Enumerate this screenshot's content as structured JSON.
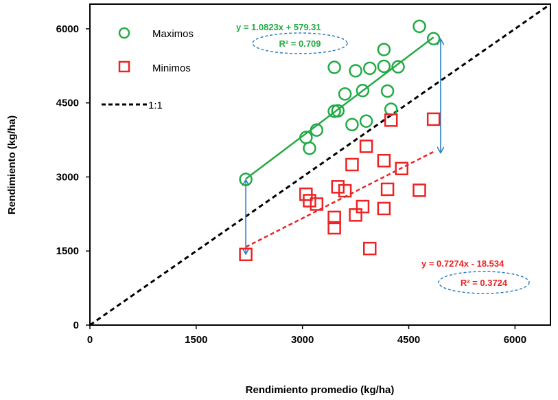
{
  "chart_data": {
    "type": "scatter",
    "xlabel": "Rendimiento promedio (kg/ha)",
    "ylabel": "Rendimiento (kg/ha)",
    "xlim": [
      0,
      6500
    ],
    "ylim": [
      0,
      6500
    ],
    "xticks": [
      "0",
      "1500",
      "3000",
      "4500",
      "6000"
    ],
    "yticks": [
      "0",
      "1500",
      "3000",
      "4500",
      "6000"
    ],
    "grid": false,
    "legend_position": "top-left",
    "series": [
      {
        "name": "Maximos",
        "marker": "circle",
        "color": "#22aa44",
        "points": [
          [
            2200,
            2950
          ],
          [
            3050,
            3800
          ],
          [
            3100,
            3580
          ],
          [
            3200,
            3950
          ],
          [
            3450,
            5220
          ],
          [
            3450,
            4330
          ],
          [
            3500,
            4340
          ],
          [
            3600,
            4680
          ],
          [
            3700,
            4060
          ],
          [
            3750,
            5150
          ],
          [
            3850,
            4750
          ],
          [
            3900,
            4130
          ],
          [
            3950,
            5200
          ],
          [
            4150,
            5580
          ],
          [
            4150,
            5240
          ],
          [
            4200,
            4740
          ],
          [
            4250,
            4370
          ],
          [
            4350,
            5230
          ],
          [
            4650,
            6050
          ],
          [
            4850,
            5800
          ]
        ],
        "trendline": {
          "slope": 1.0823,
          "intercept": 579.31,
          "x_range": [
            2200,
            4850
          ],
          "equation": "y = 1.0823x + 579.31",
          "r2": "R² = 0.709",
          "style": "solid"
        }
      },
      {
        "name": "Minimos",
        "marker": "square",
        "color": "#ee2222",
        "points": [
          [
            2200,
            1430
          ],
          [
            3050,
            2650
          ],
          [
            3100,
            2520
          ],
          [
            3200,
            2450
          ],
          [
            3450,
            2180
          ],
          [
            3450,
            1970
          ],
          [
            3500,
            2800
          ],
          [
            3600,
            2720
          ],
          [
            3700,
            3250
          ],
          [
            3750,
            2230
          ],
          [
            3850,
            2400
          ],
          [
            3900,
            3620
          ],
          [
            3950,
            1550
          ],
          [
            4150,
            3330
          ],
          [
            4150,
            2360
          ],
          [
            4200,
            2750
          ],
          [
            4250,
            4150
          ],
          [
            4400,
            3170
          ],
          [
            4650,
            2730
          ],
          [
            4850,
            4170
          ]
        ],
        "trendline": {
          "slope": 0.7274,
          "intercept": -18.534,
          "x_range": [
            2200,
            4850
          ],
          "equation": "y = 0.7274x - 18.534",
          "r2": "R² = 0.3724",
          "style": "dashed"
        }
      },
      {
        "name": "1:1",
        "type": "reference-line",
        "color": "#000000",
        "style": "dashed",
        "points": [
          [
            0,
            0
          ],
          [
            6500,
            6500
          ]
        ]
      }
    ],
    "annotations": {
      "arrow_color": "#2a7fc4",
      "double_arrows": [
        {
          "x": 2200,
          "y1": 1450,
          "y2": 2930
        },
        {
          "x": 4950,
          "y1": 3500,
          "y2": 5780
        }
      ]
    }
  }
}
